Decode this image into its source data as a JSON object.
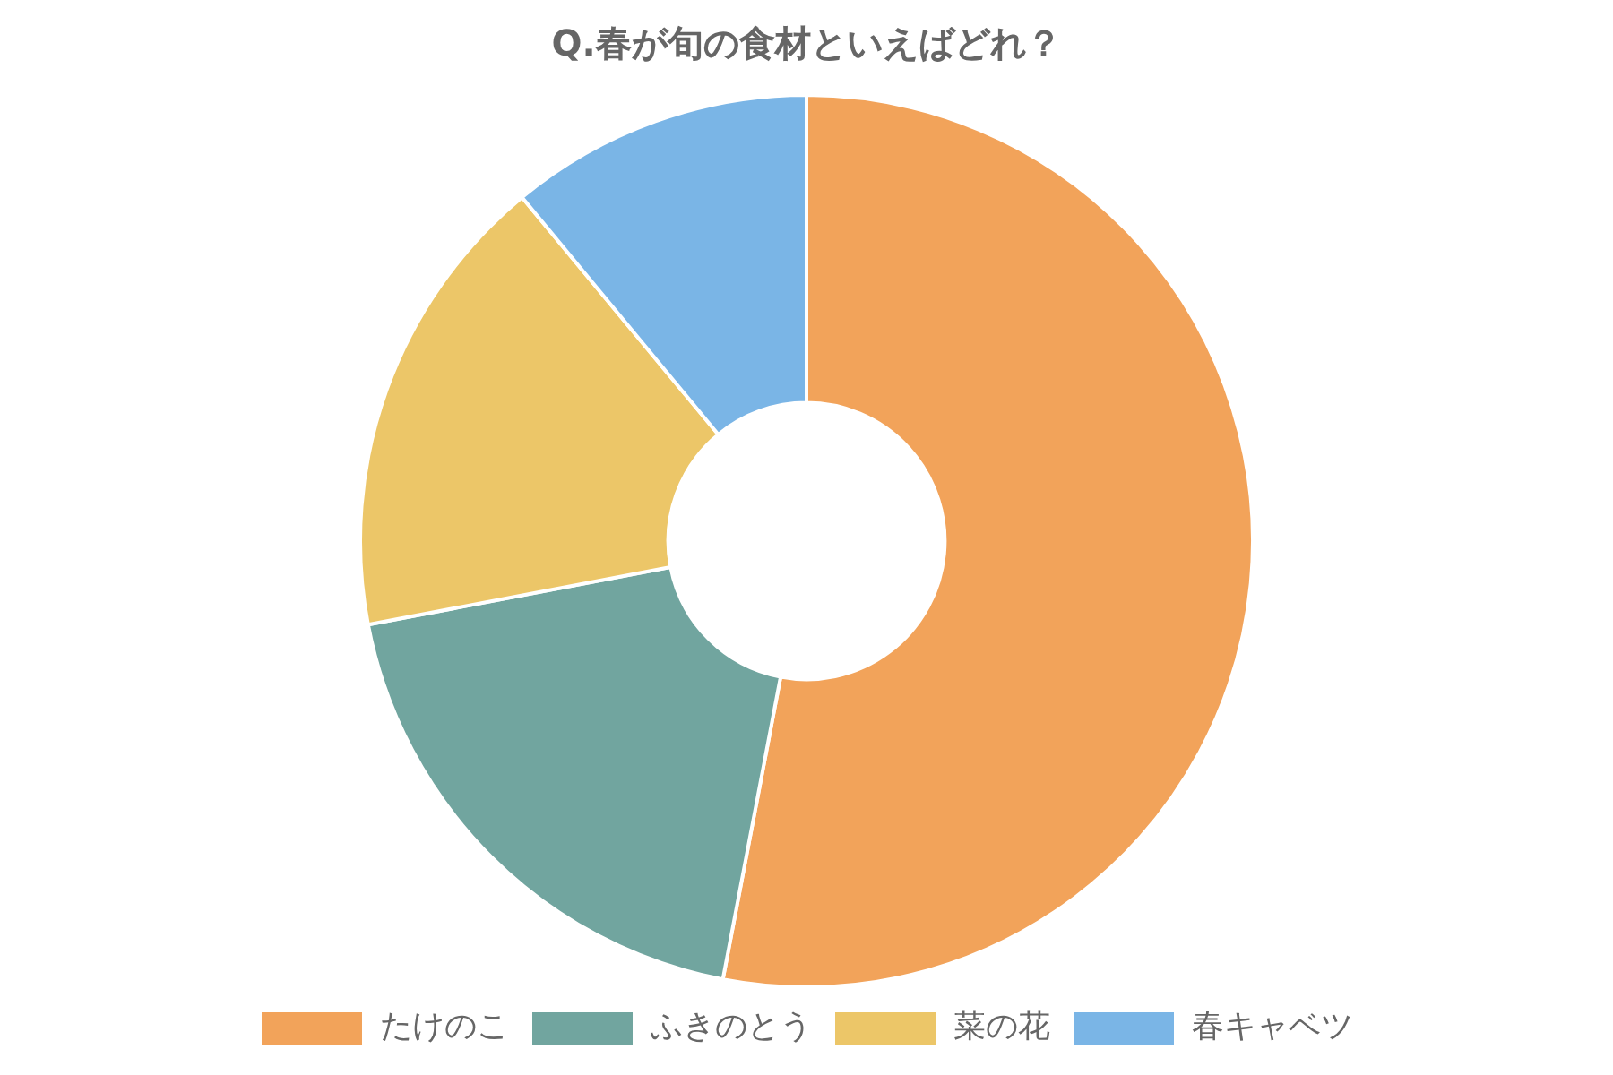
{
  "chart_data": {
    "type": "donut",
    "title": "Q.春が旬の食材といえばどれ？",
    "categories": [
      "たけのこ",
      "ふきのとう",
      "菜の花",
      "春キャベツ"
    ],
    "values": [
      53,
      19,
      17,
      11
    ],
    "colors": [
      "#f2a35a",
      "#71a59f",
      "#ecc668",
      "#7ab5e6"
    ],
    "legend": "bottom"
  }
}
